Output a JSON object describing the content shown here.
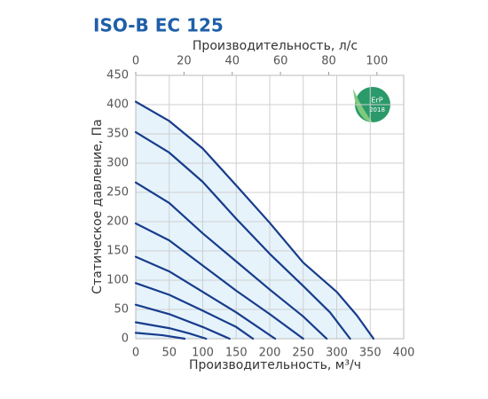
{
  "chart_data": {
    "type": "line",
    "title": "ISO-B EC 125",
    "x_label": "Производительность, м³/ч",
    "x2_label": "Производительность, л/с",
    "y_label": "Статическое давление, Па",
    "xlim": [
      0,
      400
    ],
    "xticks": [
      0,
      50,
      100,
      150,
      200,
      250,
      300,
      350,
      400
    ],
    "x2lim": [
      0,
      111.1
    ],
    "x2ticks": [
      0,
      20,
      40,
      60,
      80,
      100
    ],
    "ylim": [
      0,
      450
    ],
    "yticks": [
      0,
      50,
      100,
      150,
      200,
      250,
      300,
      350,
      400,
      450
    ],
    "grid": true,
    "area_color": "#e6f3fb",
    "badge": {
      "label": "ErP",
      "year": "2018"
    },
    "series": [
      {
        "color": "#173c8c",
        "x": [
          0,
          50,
          100,
          150,
          200,
          250,
          300,
          330,
          355
        ],
        "values": [
          405,
          372,
          325,
          262,
          198,
          130,
          80,
          40,
          0
        ]
      },
      {
        "color": "#173c8c",
        "x": [
          0,
          50,
          100,
          150,
          200,
          250,
          290,
          320
        ],
        "values": [
          353,
          318,
          268,
          205,
          145,
          90,
          45,
          0
        ]
      },
      {
        "color": "#173c8c",
        "x": [
          0,
          50,
          100,
          150,
          200,
          250,
          285
        ],
        "values": [
          267,
          232,
          180,
          132,
          84,
          38,
          0
        ]
      },
      {
        "color": "#173c8c",
        "x": [
          0,
          50,
          100,
          150,
          200,
          250
        ],
        "values": [
          197,
          168,
          125,
          82,
          42,
          0
        ]
      },
      {
        "color": "#173c8c",
        "x": [
          0,
          50,
          100,
          150,
          208
        ],
        "values": [
          140,
          115,
          80,
          45,
          0
        ]
      },
      {
        "color": "#173c8c",
        "x": [
          0,
          50,
          100,
          150,
          175
        ],
        "values": [
          95,
          75,
          48,
          20,
          0
        ]
      },
      {
        "color": "#173c8c",
        "x": [
          0,
          50,
          100,
          140
        ],
        "values": [
          58,
          42,
          20,
          0
        ]
      },
      {
        "color": "#173c8c",
        "x": [
          0,
          50,
          80,
          105
        ],
        "values": [
          28,
          18,
          9,
          0
        ]
      },
      {
        "color": "#173c8c",
        "x": [
          0,
          40,
          73
        ],
        "values": [
          10,
          6,
          0
        ]
      }
    ]
  }
}
